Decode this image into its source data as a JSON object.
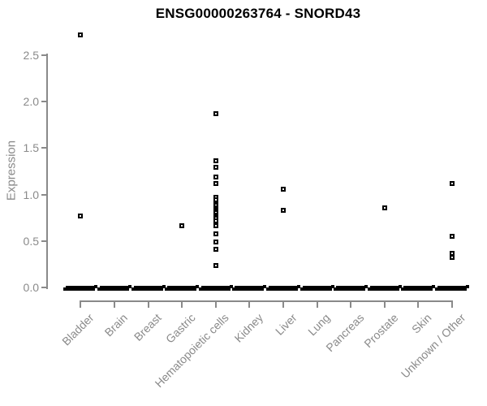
{
  "title": "ENSG00000263764 - SNORD43",
  "colors": {
    "marker": "#000000",
    "axis": "#8a8a8a",
    "title_text": "#000000",
    "background": "#ffffff"
  },
  "chart_data": {
    "type": "scatter",
    "title": "ENSG00000263764 - SNORD43",
    "xlabel": "",
    "ylabel": "Expression",
    "ylim": [
      -0.05,
      2.75
    ],
    "grid": false,
    "legend": "none",
    "yticks": [
      0.0,
      0.5,
      1.0,
      1.5,
      2.0,
      2.5
    ],
    "ytick_labels": [
      "0.0",
      "0.5",
      "1.0",
      "1.5",
      "2.0",
      "2.5"
    ],
    "categories": [
      "Bladder",
      "Brain",
      "Breast",
      "Gastric",
      "Hematopoietic cells",
      "Kidney",
      "Liver",
      "Lung",
      "Pancreas",
      "Prostate",
      "Skin",
      "Unknown / Other"
    ],
    "points": [
      {
        "category": "Bladder",
        "values": [
          2.72,
          0.77
        ]
      },
      {
        "category": "Brain",
        "values": []
      },
      {
        "category": "Breast",
        "values": []
      },
      {
        "category": "Gastric",
        "values": [
          0.66
        ]
      },
      {
        "category": "Hematopoietic cells",
        "values": [
          1.87,
          1.36,
          1.29,
          1.19,
          1.12,
          0.97,
          0.94,
          0.9,
          0.88,
          0.86,
          0.84,
          0.82,
          0.8,
          0.78,
          0.76,
          0.74,
          0.72,
          0.66,
          0.58,
          0.49,
          0.41,
          0.24
        ]
      },
      {
        "category": "Kidney",
        "values": []
      },
      {
        "category": "Liver",
        "values": [
          1.06,
          0.83
        ]
      },
      {
        "category": "Lung",
        "values": []
      },
      {
        "category": "Pancreas",
        "values": []
      },
      {
        "category": "Prostate",
        "values": [
          0.86
        ]
      },
      {
        "category": "Skin",
        "values": []
      },
      {
        "category": "Unknown / Other",
        "values": [
          1.12,
          0.55,
          0.37,
          0.32
        ]
      }
    ],
    "zero_band": {
      "value": 0.0,
      "present_in_all_categories": true,
      "note": "dense overlapping points at expression 0 form a thick black dash under every category"
    }
  }
}
